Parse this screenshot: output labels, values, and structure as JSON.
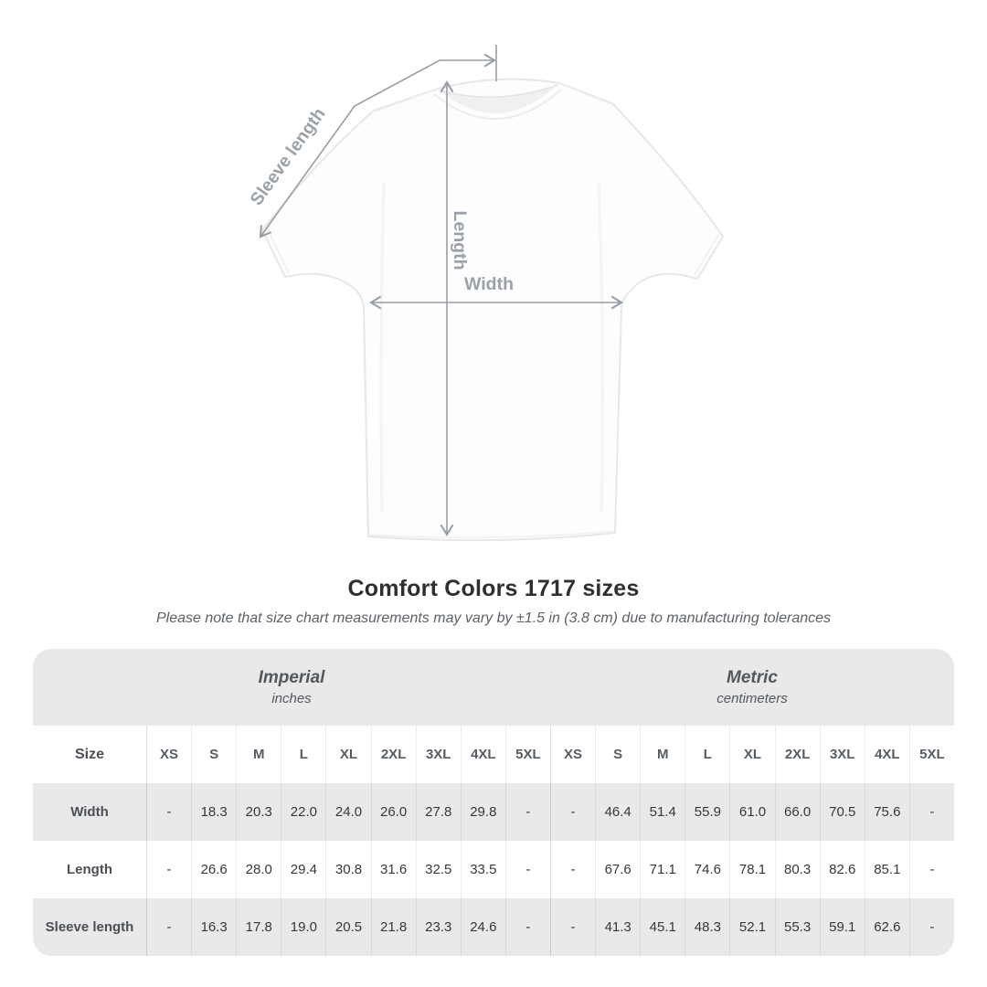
{
  "heading": {
    "title": "Comfort Colors 1717 sizes",
    "subtitle": "Please note that size chart measurements may vary by ±1.5 in (3.8 cm) due to manufacturing tolerances"
  },
  "diagram": {
    "labels": {
      "sleeve_length": "Sleeve length",
      "length": "Length",
      "width": "Width"
    },
    "line_color": "#989ea6",
    "label_color": "#9ba1a8"
  },
  "chart_data": {
    "type": "table",
    "title": "Comfort Colors 1717 sizes",
    "unit_groups": [
      {
        "name": "Imperial",
        "unit": "inches"
      },
      {
        "name": "Metric",
        "unit": "centimeters"
      }
    ],
    "size_column_header": "Size",
    "sizes": [
      "XS",
      "S",
      "M",
      "L",
      "XL",
      "2XL",
      "3XL",
      "4XL",
      "5XL"
    ],
    "rows": [
      {
        "label": "Width",
        "imperial": [
          "-",
          "18.3",
          "20.3",
          "22.0",
          "24.0",
          "26.0",
          "27.8",
          "29.8",
          "-"
        ],
        "metric": [
          "-",
          "46.4",
          "51.4",
          "55.9",
          "61.0",
          "66.0",
          "70.5",
          "75.6",
          "-"
        ]
      },
      {
        "label": "Length",
        "imperial": [
          "-",
          "26.6",
          "28.0",
          "29.4",
          "30.8",
          "31.6",
          "32.5",
          "33.5",
          "-"
        ],
        "metric": [
          "-",
          "67.6",
          "71.1",
          "74.6",
          "78.1",
          "80.3",
          "82.6",
          "85.1",
          "-"
        ]
      },
      {
        "label": "Sleeve length",
        "imperial": [
          "-",
          "16.3",
          "17.8",
          "19.0",
          "20.5",
          "21.8",
          "23.3",
          "24.6",
          "-"
        ],
        "metric": [
          "-",
          "41.3",
          "45.1",
          "48.3",
          "52.1",
          "55.3",
          "59.1",
          "62.6",
          "-"
        ]
      }
    ]
  }
}
